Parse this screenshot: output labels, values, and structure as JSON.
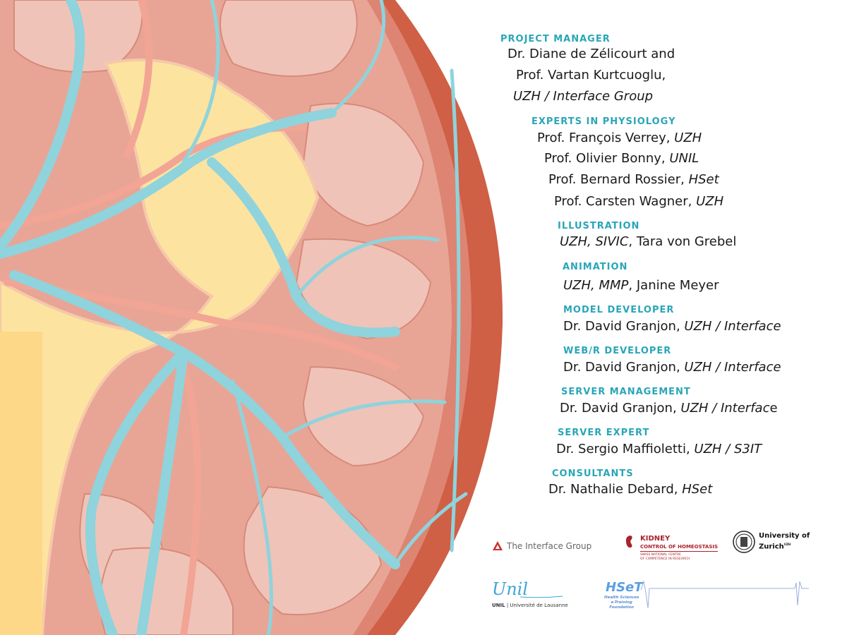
{
  "credits": [
    {
      "heading": "PROJECT MANAGER",
      "lines": [
        {
          "text": "Dr. Diane de Zélicourt and",
          "em": ""
        },
        {
          "text": "Prof. Vartan Kurtcuoglu,",
          "em": ""
        },
        {
          "text": "",
          "em": "UZH / Interface Group"
        }
      ]
    },
    {
      "heading": "EXPERTS IN PHYSIOLOGY",
      "lines": [
        {
          "text": "Prof. François Verrey, ",
          "em": "UZH"
        },
        {
          "text": "Prof. Olivier Bonny, ",
          "em": "UNIL"
        },
        {
          "text": "Prof. Bernard Rossier, ",
          "em": "HSet"
        },
        {
          "text": "Prof. Carsten Wagner, ",
          "em": "UZH"
        }
      ]
    },
    {
      "heading": "ILLUSTRATION",
      "lines": [
        {
          "em_first": "UZH, SIVIC",
          "text": ", Tara von Grebel"
        }
      ]
    },
    {
      "heading": "ANIMATION",
      "lines": [
        {
          "em_first": "UZH, MMP",
          "text": ", Janine Meyer"
        }
      ]
    },
    {
      "heading": "MODEL DEVELOPER",
      "lines": [
        {
          "text": "Dr. David Granjon, ",
          "em": "UZH / Interface"
        }
      ]
    },
    {
      "heading": "WEB/R DEVELOPER",
      "lines": [
        {
          "text": "Dr. David Granjon, ",
          "em": "UZH / Interface"
        }
      ]
    },
    {
      "heading": "SERVER MANAGEMENT",
      "lines": [
        {
          "text": "Dr. David Granjon, ",
          "em": "UZH / Interfac",
          "tail": "e"
        }
      ]
    },
    {
      "heading": "SERVER EXPERT",
      "lines": [
        {
          "text": "Dr. Sergio Maffioletti, ",
          "em": "UZH / S3IT"
        }
      ]
    },
    {
      "heading": "CONSULTANTS",
      "lines": [
        {
          "text": "Dr. Nathalie Debard, ",
          "em": "HSet"
        }
      ]
    }
  ],
  "logos": {
    "interface": "The Interface Group",
    "kidney_title": "KIDNEY",
    "kidney_sub": "CONTROL OF HOMEOSTASIS",
    "kidney_small1": "SWISS NATIONAL CENTRE",
    "kidney_small2": "OF COMPETENCE IN RESEARCH",
    "uzh1": "University of",
    "uzh2": "Zurich",
    "uzh_sup": "UZH",
    "unil_script": "Unil",
    "unil_caption_bold": "UNIL",
    "unil_caption": " | Université de Lausanne",
    "hset": "HSeT",
    "hset_sub1": "Health Sciences",
    "hset_sub2": "e-Training",
    "hset_sub3": "Foundation"
  },
  "colors": {
    "heading": "#2aa6b8",
    "capsule": "#cf5f45",
    "vessel_blue": "#8fd3dc",
    "pelvis_yellow": "#fde3a0",
    "lobe_pink": "#eab3a8"
  }
}
